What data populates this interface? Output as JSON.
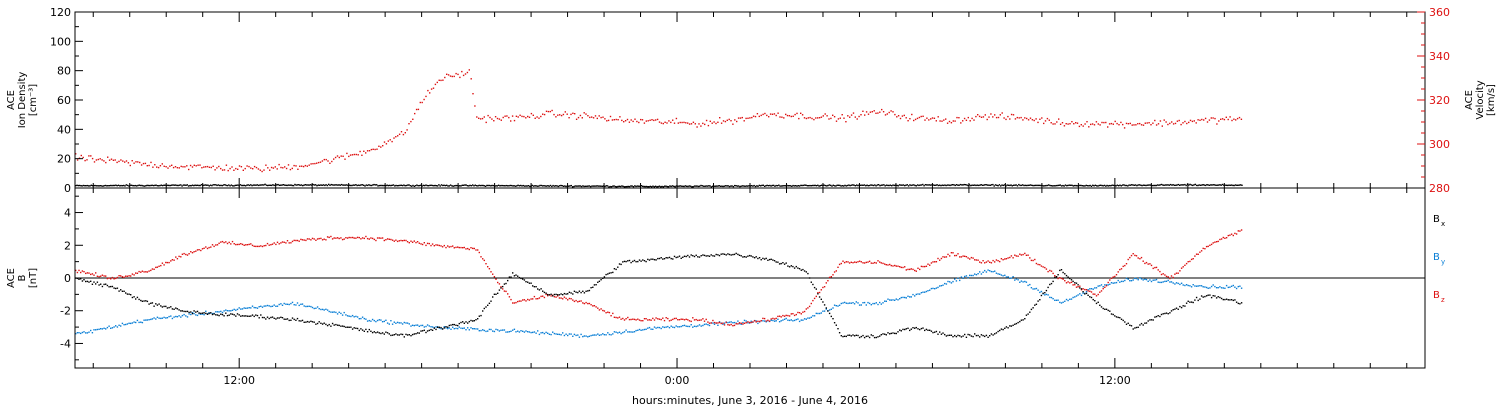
{
  "chart_data": [
    {
      "type": "scatter",
      "panel": "top",
      "ylabel_left": [
        "ACE",
        "Ion Density",
        "[cm⁻³]"
      ],
      "ylabel_right": [
        "ACE",
        "Velocity",
        "[km/s]"
      ],
      "ylim_left": [
        0,
        120
      ],
      "yticks_left": [
        0,
        20,
        40,
        60,
        80,
        100,
        120
      ],
      "ylim_right": [
        280,
        360
      ],
      "yticks_right": [
        280,
        300,
        320,
        340,
        360
      ],
      "grid": false,
      "series": [
        {
          "axis": "left",
          "color": "#000000",
          "key_points": [
            [
              0,
              2
            ],
            [
              6,
              2.5
            ],
            [
              12,
              2
            ],
            [
              16,
              1.5
            ],
            [
              19,
              2
            ],
            [
              24,
              2.5
            ],
            [
              28,
              2
            ],
            [
              30,
              2.5
            ],
            [
              32,
              2.4
            ]
          ]
        },
        {
          "axis": "right",
          "color": "#dd1111",
          "key_points": [
            [
              0,
              294
            ],
            [
              1,
              292.5
            ],
            [
              2,
              291
            ],
            [
              3,
              290
            ],
            [
              4,
              289.5
            ],
            [
              5,
              289
            ],
            [
              6,
              290
            ],
            [
              7,
              293
            ],
            [
              8,
              297
            ],
            [
              9,
              305
            ],
            [
              9.5,
              320
            ],
            [
              10,
              330
            ],
            [
              10.8,
              333
            ],
            [
              11,
              312
            ],
            [
              12,
              312
            ],
            [
              13,
              314
            ],
            [
              14,
              313
            ],
            [
              15,
              311
            ],
            [
              16,
              310.5
            ],
            [
              17,
              309.5
            ],
            [
              18,
              311
            ],
            [
              19,
              314
            ],
            [
              20,
              313
            ],
            [
              21,
              312
            ],
            [
              22,
              315
            ],
            [
              23,
              312
            ],
            [
              24,
              311
            ],
            [
              25,
              313
            ],
            [
              26,
              312
            ],
            [
              27,
              310
            ],
            [
              28,
              309.5
            ],
            [
              29,
              309.5
            ],
            [
              30,
              310
            ],
            [
              31,
              311
            ],
            [
              32,
              312
            ]
          ]
        }
      ]
    },
    {
      "type": "scatter",
      "panel": "bottom",
      "ylabel": [
        "ACE",
        "B",
        "[nT]"
      ],
      "ylim": [
        -5.5,
        5.5
      ],
      "yticks": [
        -4,
        -2,
        0,
        2,
        4
      ],
      "zero_line": true,
      "grid": false,
      "legend": {
        "placement": "right",
        "entries": [
          {
            "base": "B",
            "sub": "x",
            "color": "#000000"
          },
          {
            "base": "B",
            "sub": "y",
            "color": "#0a7fd6"
          },
          {
            "base": "B",
            "sub": "z",
            "color": "#dd1111"
          }
        ]
      },
      "series": [
        {
          "name": "Bx",
          "color": "#000000",
          "key_points": [
            [
              0,
              0
            ],
            [
              1,
              -0.5
            ],
            [
              2,
              -1.5
            ],
            [
              3,
              -2
            ],
            [
              4,
              -2.2
            ],
            [
              5,
              -2.3
            ],
            [
              6,
              -2.5
            ],
            [
              7,
              -2.8
            ],
            [
              8,
              -3.2
            ],
            [
              9,
              -3.5
            ],
            [
              10,
              -3
            ],
            [
              11,
              -2.5
            ],
            [
              11.5,
              -1
            ],
            [
              12,
              0.3
            ],
            [
              13,
              -1
            ],
            [
              14,
              -0.8
            ],
            [
              15,
              1
            ],
            [
              16,
              1.2
            ],
            [
              17,
              1.4
            ],
            [
              18,
              1.5
            ],
            [
              19,
              1.2
            ],
            [
              20,
              0.5
            ],
            [
              21,
              -3.5
            ],
            [
              22,
              -3.5
            ],
            [
              23,
              -3
            ],
            [
              24,
              -3.5
            ],
            [
              25,
              -3.5
            ],
            [
              26,
              -2.5
            ],
            [
              27,
              0.5
            ],
            [
              28,
              -1.5
            ],
            [
              29,
              -3
            ],
            [
              30,
              -2
            ],
            [
              31,
              -1
            ],
            [
              32,
              -1.5
            ]
          ]
        },
        {
          "name": "By",
          "color": "#0a7fd6",
          "key_points": [
            [
              0,
              -3.4
            ],
            [
              2,
              -2.5
            ],
            [
              4,
              -2
            ],
            [
              6,
              -1.5
            ],
            [
              8,
              -2.5
            ],
            [
              10,
              -3
            ],
            [
              12,
              -3.2
            ],
            [
              14,
              -3.5
            ],
            [
              16,
              -3
            ],
            [
              18,
              -2.7
            ],
            [
              20,
              -2.5
            ],
            [
              21,
              -1.5
            ],
            [
              22,
              -1.5
            ],
            [
              23,
              -1
            ],
            [
              24,
              -0.2
            ],
            [
              25,
              0.5
            ],
            [
              26,
              -0.2
            ],
            [
              27,
              -1.5
            ],
            [
              28,
              -0.5
            ],
            [
              29,
              0
            ],
            [
              30,
              -0.2
            ],
            [
              31,
              -0.5
            ],
            [
              32,
              -0.5
            ]
          ]
        },
        {
          "name": "Bz",
          "color": "#dd1111",
          "key_points": [
            [
              0,
              0.5
            ],
            [
              1,
              0
            ],
            [
              2,
              0.5
            ],
            [
              3,
              1.5
            ],
            [
              4,
              2.2
            ],
            [
              5,
              2
            ],
            [
              6,
              2.3
            ],
            [
              7,
              2.5
            ],
            [
              8,
              2.5
            ],
            [
              9,
              2.3
            ],
            [
              10,
              2
            ],
            [
              11,
              1.8
            ],
            [
              11.5,
              0
            ],
            [
              12,
              -1.5
            ],
            [
              13,
              -1
            ],
            [
              14,
              -1.5
            ],
            [
              15,
              -2.5
            ],
            [
              16,
              -2.5
            ],
            [
              17,
              -2.5
            ],
            [
              18,
              -2.8
            ],
            [
              19,
              -2.5
            ],
            [
              20,
              -2
            ],
            [
              21,
              1
            ],
            [
              22,
              1
            ],
            [
              23,
              0.5
            ],
            [
              24,
              1.5
            ],
            [
              25,
              1
            ],
            [
              26,
              1.5
            ],
            [
              27,
              0
            ],
            [
              28,
              -1
            ],
            [
              29,
              1.5
            ],
            [
              30,
              0
            ],
            [
              31,
              2
            ],
            [
              32,
              3
            ]
          ]
        }
      ]
    }
  ],
  "x_axis": {
    "range_hours": [
      0,
      37
    ],
    "ticks": [
      {
        "x": 4.5,
        "label": "12:00"
      },
      {
        "x": 16.5,
        "label": "0:00"
      },
      {
        "x": 28.5,
        "label": "12:00"
      }
    ],
    "minor_ticks": [
      0.5,
      1.5,
      2.5,
      3.5,
      5.5,
      6.5,
      7.5,
      8.5,
      9.5,
      10.5,
      11.5,
      12.5,
      13.5,
      14.5,
      15.5,
      17.5,
      18.5,
      19.5,
      20.5,
      21.5,
      22.5,
      23.5,
      24.5,
      25.5,
      26.5,
      27.5,
      29.5,
      30.5,
      31.5,
      32.5,
      33.5,
      34.5,
      35.5,
      36.5
    ],
    "data_end": 32,
    "label": "hours:minutes, June  3, 2016 - June  4, 2016"
  }
}
